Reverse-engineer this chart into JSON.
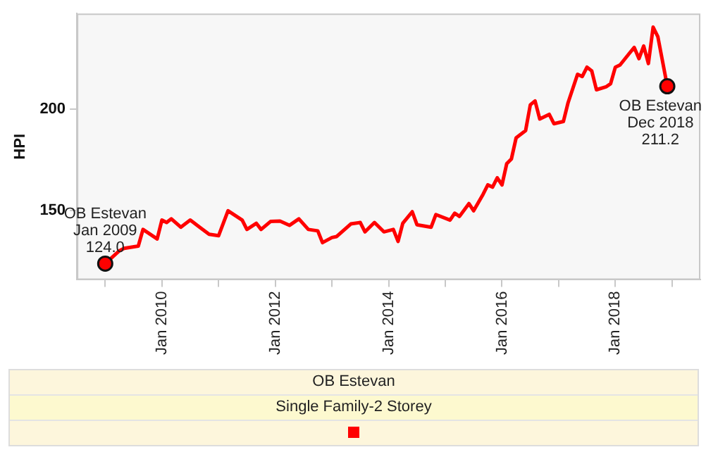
{
  "chart_data": {
    "type": "line",
    "subtitle": "Single Family-2 Storey",
    "ylabel": "HPI",
    "xlim": [
      "2008-07",
      "2019-07"
    ],
    "ylim": [
      116,
      247
    ],
    "yticks": [
      150,
      200
    ],
    "xticks": [
      {
        "value": "2009-01",
        "label": null
      },
      {
        "value": "2010-01",
        "label": "Jan 2010"
      },
      {
        "value": "2011-01",
        "label": null
      },
      {
        "value": "2012-01",
        "label": "Jan 2012"
      },
      {
        "value": "2013-01",
        "label": null
      },
      {
        "value": "2014-01",
        "label": "Jan 2014"
      },
      {
        "value": "2015-01",
        "label": null
      },
      {
        "value": "2016-01",
        "label": "Jan 2016"
      },
      {
        "value": "2017-01",
        "label": null
      },
      {
        "value": "2018-01",
        "label": "Jan 2018"
      },
      {
        "value": "2019-01",
        "label": null
      }
    ],
    "grid": false,
    "legend": "bottom",
    "line_style": "solid",
    "series": [
      {
        "name": "OB Estevan",
        "color": "#ff0000",
        "x": [
          "2009-01",
          "2009-04",
          "2009-05",
          "2009-08",
          "2009-09",
          "2009-12",
          "2010-01",
          "2010-02",
          "2010-03",
          "2010-05",
          "2010-07",
          "2010-09",
          "2010-11",
          "2011-01",
          "2011-03",
          "2011-06",
          "2011-07",
          "2011-09",
          "2011-10",
          "2011-12",
          "2012-02",
          "2012-04",
          "2012-06",
          "2012-08",
          "2012-10",
          "2012-11",
          "2013-01",
          "2013-02",
          "2013-05",
          "2013-07",
          "2013-08",
          "2013-10",
          "2013-12",
          "2014-02",
          "2014-03",
          "2014-04",
          "2014-06",
          "2014-07",
          "2014-10",
          "2014-11",
          "2015-02",
          "2015-03",
          "2015-04",
          "2015-06",
          "2015-07",
          "2015-09",
          "2015-10",
          "2015-11",
          "2015-12",
          "2016-01",
          "2016-02",
          "2016-03",
          "2016-04",
          "2016-06",
          "2016-07",
          "2016-08",
          "2016-09",
          "2016-11",
          "2016-12",
          "2017-02",
          "2017-03",
          "2017-05",
          "2017-06",
          "2017-07",
          "2017-08",
          "2017-09",
          "2017-11",
          "2017-12",
          "2018-01",
          "2018-02",
          "2018-04",
          "2018-05",
          "2018-06",
          "2018-07",
          "2018-08",
          "2018-09",
          "2018-10",
          "2018-12"
        ],
        "values": [
          124.0,
          130.3,
          131.5,
          132.6,
          140.8,
          136.1,
          145.4,
          144.2,
          146.0,
          141.9,
          145.4,
          141.9,
          138.4,
          137.7,
          150.0,
          145.4,
          140.8,
          143.8,
          140.8,
          144.7,
          144.9,
          142.8,
          146.0,
          140.8,
          140.1,
          134.3,
          136.8,
          137.3,
          143.5,
          144.2,
          139.6,
          144.2,
          139.6,
          140.8,
          134.9,
          143.8,
          149.5,
          143.1,
          141.9,
          148.1,
          145.4,
          148.8,
          147.2,
          153.5,
          150.0,
          158.1,
          162.7,
          161.6,
          166.2,
          162.7,
          173.1,
          175.5,
          185.9,
          189.4,
          202.1,
          204.0,
          195.1,
          197.4,
          192.8,
          193.9,
          203.2,
          217.1,
          216.0,
          220.6,
          218.8,
          209.5,
          210.9,
          212.5,
          220.6,
          221.7,
          227.5,
          230.3,
          224.8,
          231.0,
          222.4,
          240.3,
          235.6,
          211.2
        ]
      }
    ],
    "annotations": [
      {
        "text": "OB Estevan\nJan 2009\n124.0",
        "x": "2009-01",
        "y": 124.0
      },
      {
        "text": "OB Estevan\nDec 2018\n211.2",
        "x": "2018-12",
        "y": 211.2
      }
    ]
  }
}
